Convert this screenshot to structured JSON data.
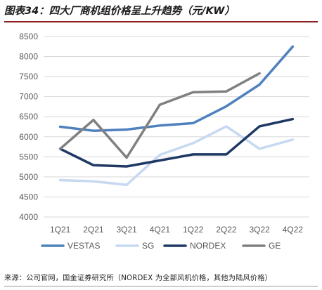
{
  "title": "图表34：四大厂商机组价格呈上升趋势（元/KW）",
  "source": "来源：公司官网，国金证券研究所（NORDEX 为全部风机价格，其他为陆风价格）",
  "chart_data": {
    "type": "line",
    "title": "图表34：四大厂商机组价格呈上升趋势（元/KW）",
    "xlabel": "",
    "ylabel": "",
    "categories": [
      "1Q21",
      "2Q21",
      "3Q21",
      "4Q21",
      "1Q22",
      "2Q22",
      "3Q22",
      "4Q22"
    ],
    "ylim": [
      4000,
      8500
    ],
    "yticks": [
      4000,
      4500,
      5000,
      5500,
      6000,
      6500,
      7000,
      7500,
      8000,
      8500
    ],
    "grid": true,
    "legend_position": "bottom",
    "series": [
      {
        "name": "VESTAS",
        "color": "#4f81bd",
        "values": [
          6250,
          6150,
          6180,
          6280,
          6340,
          6760,
          7300,
          8250
        ]
      },
      {
        "name": "SG",
        "color": "#c6d9f1",
        "values": [
          4920,
          4890,
          4800,
          5550,
          5840,
          6260,
          5700,
          5930
        ]
      },
      {
        "name": "NORDEX",
        "color": "#1f3864",
        "values": [
          5700,
          5290,
          5260,
          5410,
          5560,
          5560,
          6260,
          6440
        ]
      },
      {
        "name": "GE",
        "color": "#808080",
        "values": [
          5700,
          6420,
          5480,
          6800,
          7110,
          7130,
          7580,
          null
        ]
      }
    ]
  }
}
